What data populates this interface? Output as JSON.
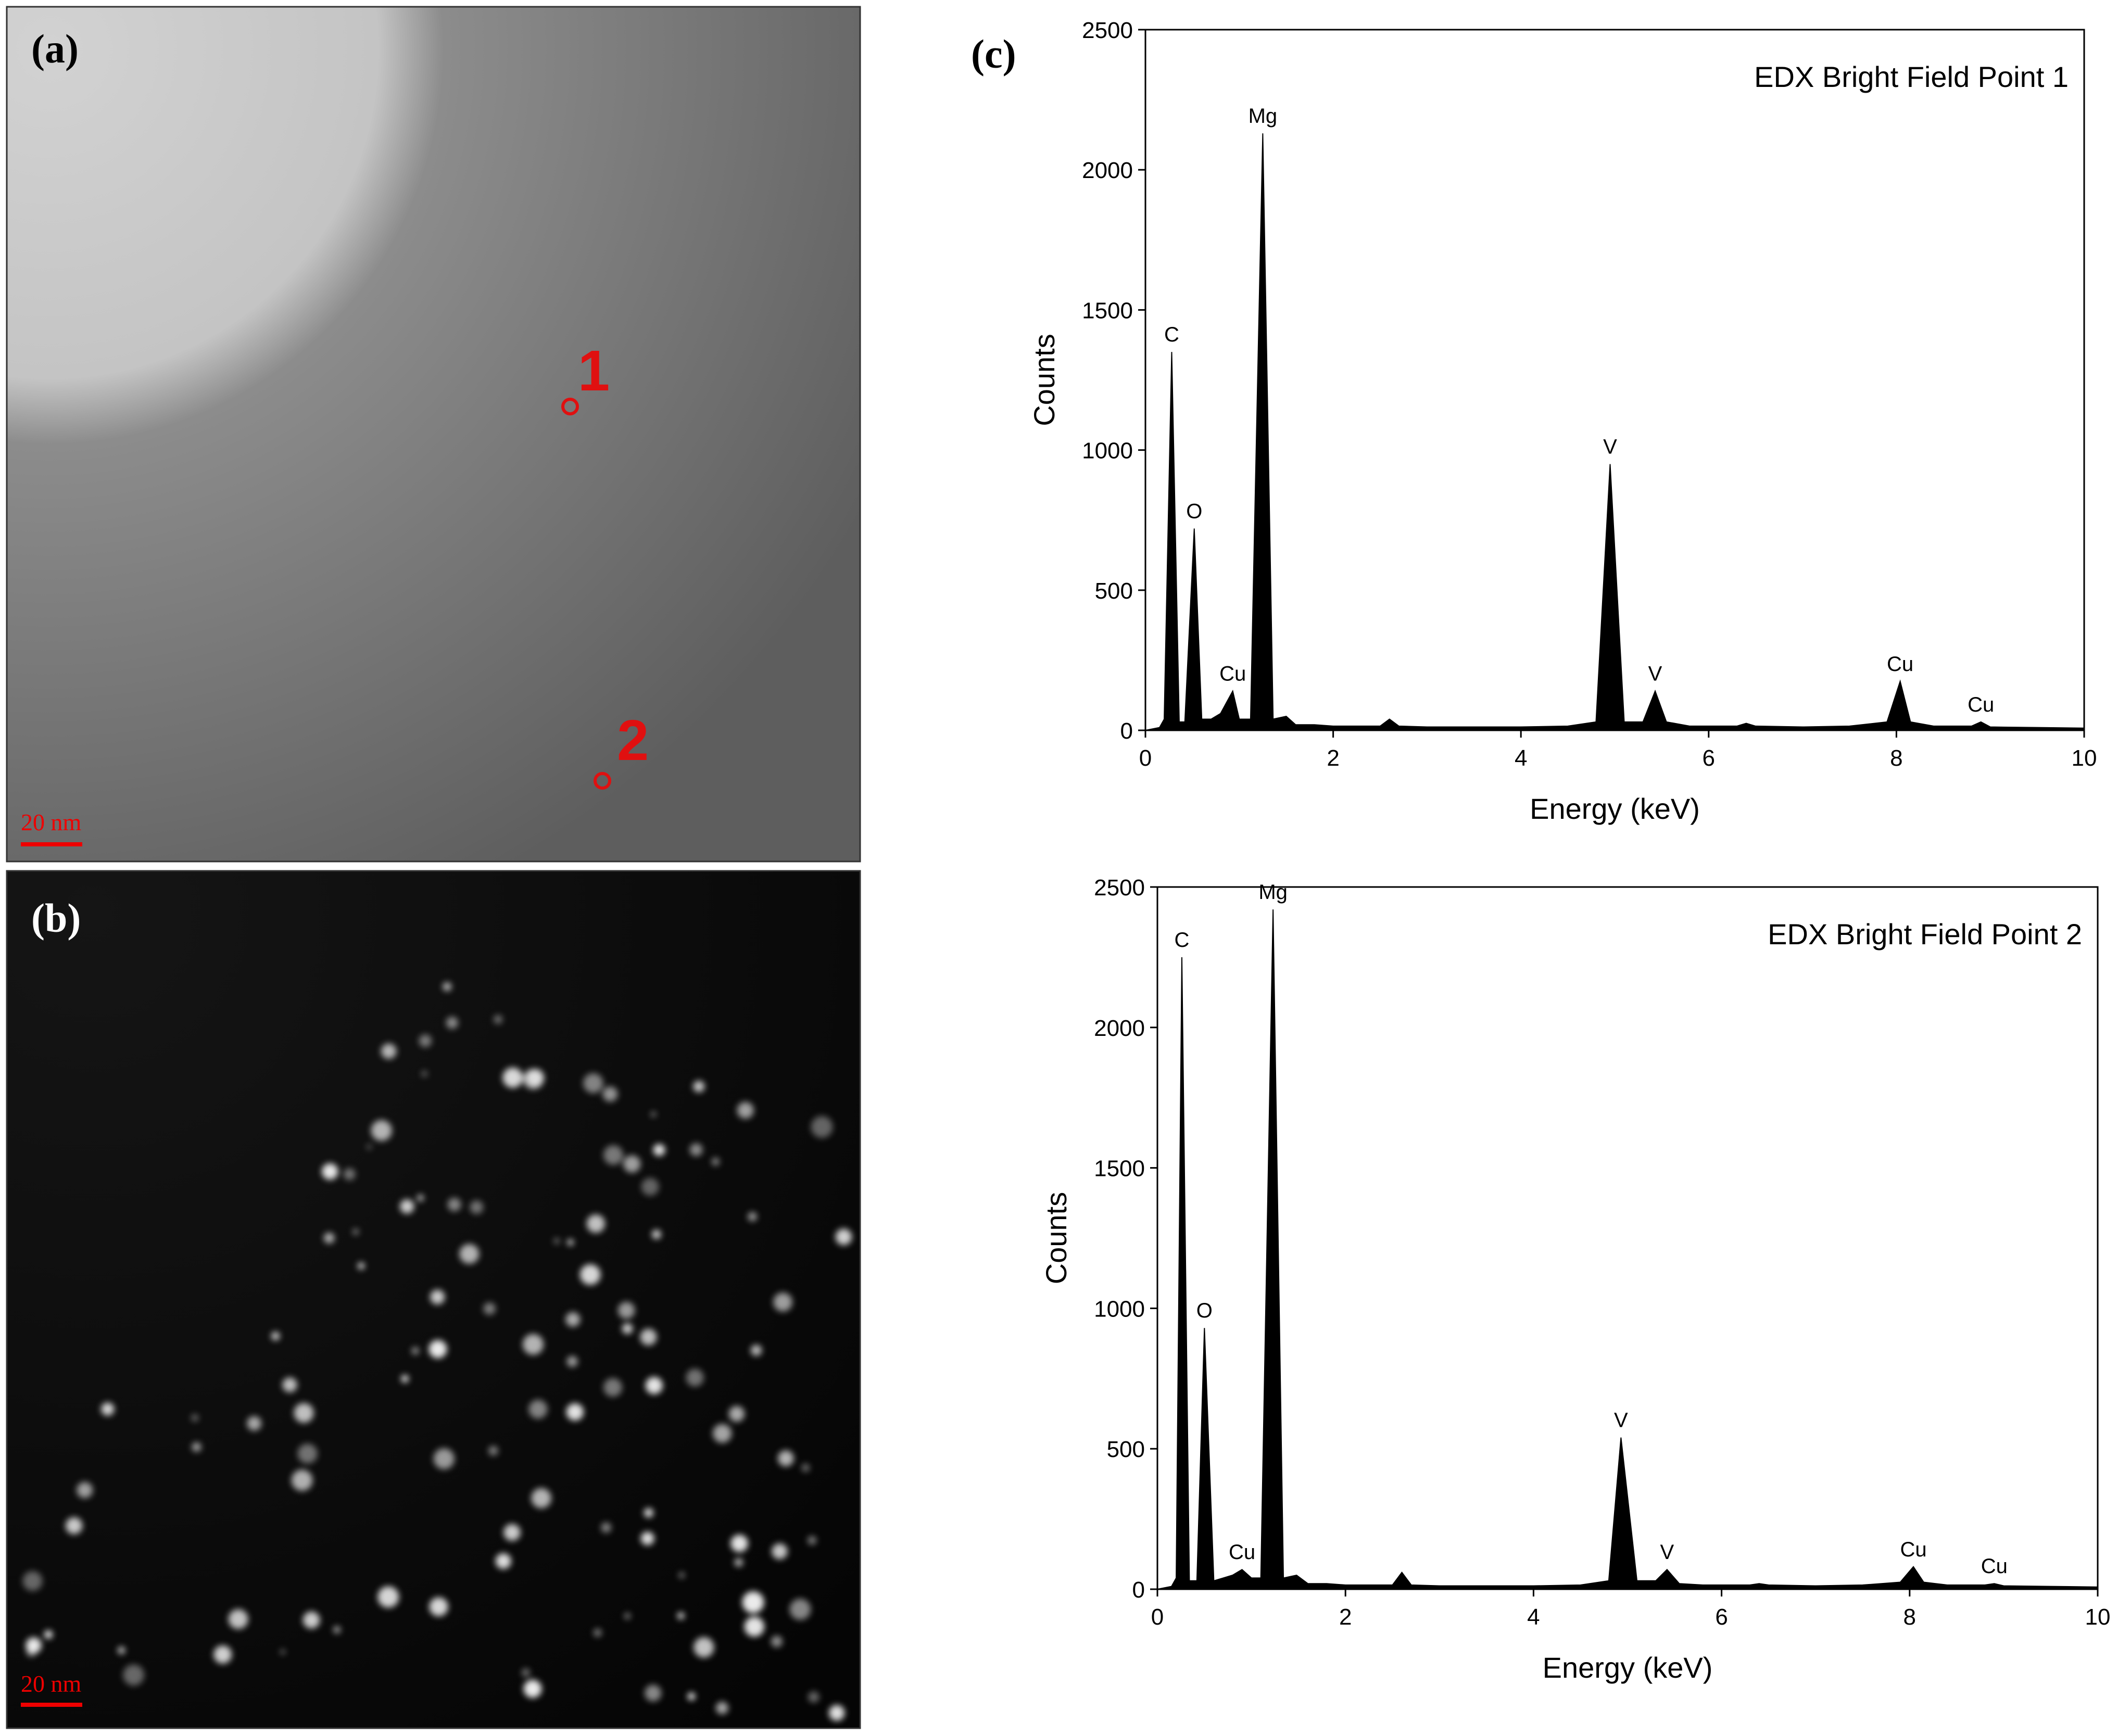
{
  "chart_data": [
    {
      "type": "area",
      "title": "EDX Bright Field Point 1",
      "x_label": "Energy (keV)",
      "y_label": "Counts",
      "color": "#000000",
      "x": [
        0,
        0.15,
        0.2,
        0.28,
        0.36,
        0.42,
        0.52,
        0.6,
        0.7,
        0.8,
        0.93,
        1.0,
        1.12,
        1.25,
        1.36,
        1.5,
        1.6,
        1.8,
        2.0,
        2.5,
        2.6,
        2.7,
        3.0,
        3.5,
        4.0,
        4.5,
        4.8,
        4.95,
        5.1,
        5.3,
        5.43,
        5.55,
        5.8,
        6.3,
        6.4,
        6.5,
        7.0,
        7.5,
        7.9,
        8.04,
        8.15,
        8.4,
        8.8,
        8.9,
        9.0,
        9.5,
        10
      ],
      "values": [
        0,
        10,
        40,
        1350,
        30,
        30,
        720,
        40,
        40,
        60,
        140,
        40,
        40,
        2130,
        40,
        50,
        20,
        20,
        15,
        15,
        40,
        15,
        12,
        12,
        12,
        15,
        30,
        950,
        30,
        30,
        140,
        30,
        15,
        15,
        25,
        15,
        12,
        15,
        30,
        175,
        30,
        15,
        15,
        30,
        12,
        10,
        8
      ],
      "annotations": [
        {
          "label": "C",
          "x": 0.28,
          "y": 1350
        },
        {
          "label": "O",
          "x": 0.52,
          "y": 720
        },
        {
          "label": "Cu",
          "x": 0.93,
          "y": 140
        },
        {
          "label": "Mg",
          "x": 1.25,
          "y": 2130
        },
        {
          "label": "V",
          "x": 4.95,
          "y": 950
        },
        {
          "label": "V",
          "x": 5.43,
          "y": 140
        },
        {
          "label": "Cu",
          "x": 8.04,
          "y": 175
        },
        {
          "label": "Cu",
          "x": 8.9,
          "y": 30
        }
      ],
      "xlim": [
        0,
        10
      ],
      "xticks": [
        0,
        2,
        4,
        6,
        8,
        10
      ],
      "ylim": [
        0,
        2500
      ],
      "yticks": [
        0,
        500,
        1000,
        1500,
        2000,
        2500
      ]
    },
    {
      "type": "area",
      "title": "EDX Bright Field Point 2",
      "x_label": "Energy (keV)",
      "y_label": "Counts",
      "color": "#000000",
      "x": [
        0,
        0.15,
        0.2,
        0.26,
        0.34,
        0.42,
        0.5,
        0.6,
        0.7,
        0.8,
        0.9,
        1.0,
        1.1,
        1.23,
        1.34,
        1.48,
        1.6,
        1.8,
        2.0,
        2.5,
        2.6,
        2.7,
        3.0,
        3.5,
        4.0,
        4.5,
        4.8,
        4.93,
        5.1,
        5.3,
        5.42,
        5.55,
        5.8,
        6.3,
        6.4,
        6.5,
        7.0,
        7.5,
        7.9,
        8.04,
        8.15,
        8.4,
        8.8,
        8.9,
        9.0,
        9.5,
        10
      ],
      "values": [
        0,
        10,
        40,
        2250,
        30,
        30,
        930,
        30,
        40,
        50,
        70,
        40,
        40,
        2420,
        40,
        50,
        20,
        20,
        15,
        15,
        60,
        15,
        12,
        12,
        12,
        15,
        30,
        540,
        30,
        30,
        70,
        20,
        15,
        15,
        20,
        15,
        12,
        15,
        25,
        80,
        25,
        15,
        15,
        20,
        12,
        10,
        8
      ],
      "annotations": [
        {
          "label": "C",
          "x": 0.26,
          "y": 2250
        },
        {
          "label": "O",
          "x": 0.5,
          "y": 930
        },
        {
          "label": "Cu",
          "x": 0.9,
          "y": 70
        },
        {
          "label": "Mg",
          "x": 1.23,
          "y": 2420
        },
        {
          "label": "V",
          "x": 4.93,
          "y": 540
        },
        {
          "label": "V",
          "x": 5.42,
          "y": 70
        },
        {
          "label": "Cu",
          "x": 8.04,
          "y": 80
        },
        {
          "label": "Cu",
          "x": 8.9,
          "y": 20
        }
      ],
      "xlim": [
        0,
        10
      ],
      "xticks": [
        0,
        2,
        4,
        6,
        8,
        10
      ],
      "ylim": [
        0,
        2500
      ],
      "yticks": [
        0,
        500,
        1000,
        1500,
        2000,
        2500
      ]
    }
  ],
  "panels": {
    "a": {
      "label": "(a)",
      "scale_bar": "20 nm",
      "points": [
        "1",
        "2"
      ]
    },
    "b": {
      "label": "(b)",
      "scale_bar": "20 nm"
    },
    "c": {
      "label": "(c)"
    }
  }
}
